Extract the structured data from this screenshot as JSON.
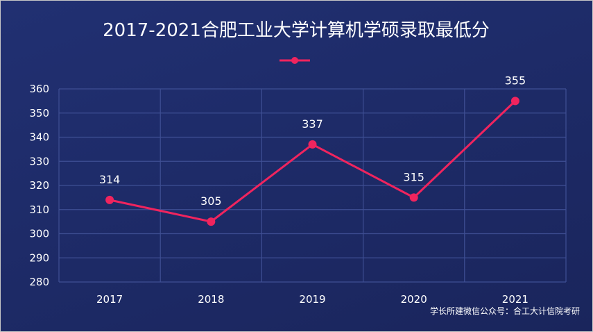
{
  "chart_data": {
    "type": "line",
    "title": "2017-2021合肥工业大学计算机学硕录取最低分",
    "categories": [
      "2017",
      "2018",
      "2019",
      "2020",
      "2021"
    ],
    "series": [
      {
        "values": [
          314,
          305,
          337,
          315,
          355
        ]
      }
    ],
    "ylim": [
      280,
      360
    ],
    "yticks": [
      "280",
      "290",
      "300",
      "310",
      "320",
      "330",
      "340",
      "350",
      "360"
    ],
    "grid": true,
    "legend": "top-center",
    "data_labels": true,
    "colors": {
      "line": "#f0245e",
      "grid": "#3f4f94",
      "text": "#ffffff"
    }
  },
  "watermark": "学长所建微信公众号：合工大计信院考研"
}
